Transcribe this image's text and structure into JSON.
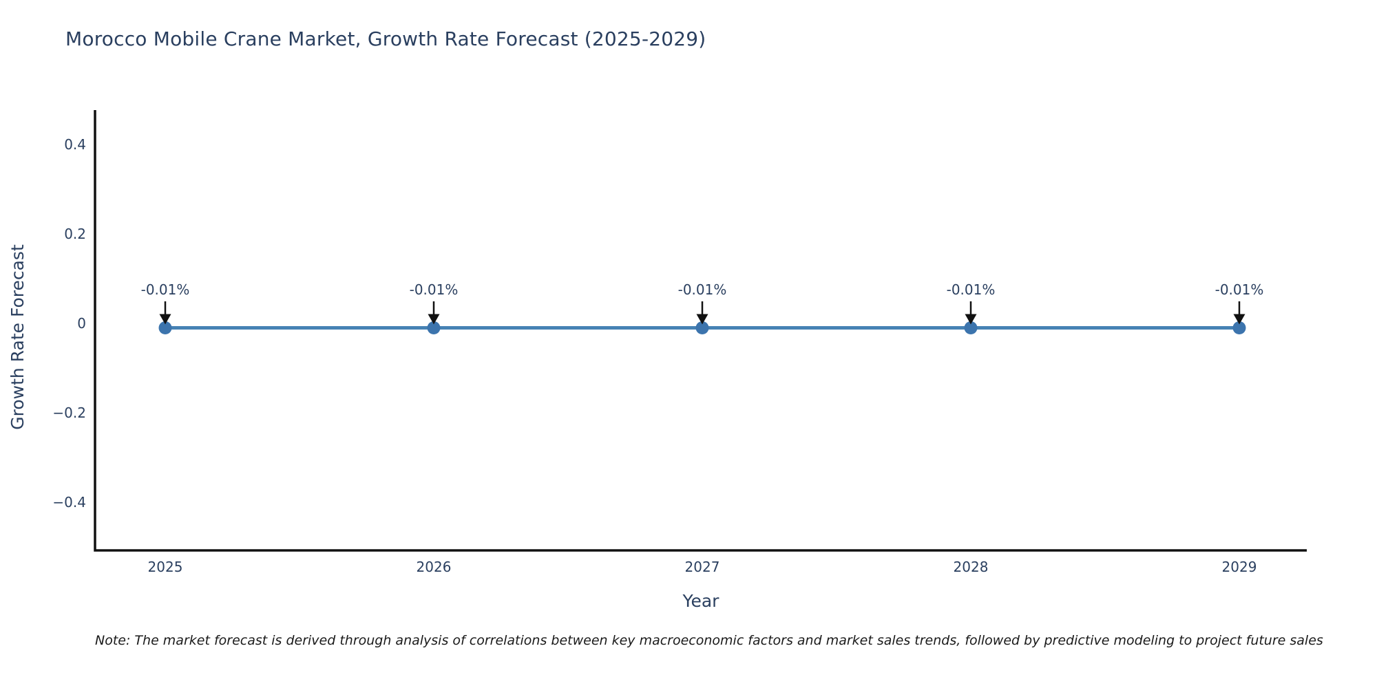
{
  "title": "Morocco Mobile Crane Market, Growth Rate Forecast (2025-2029)",
  "note": "Note: The market forecast is derived through analysis of correlations between key macroeconomic factors and market sales trends, followed by predictive modeling to project future sales",
  "chart_data": {
    "type": "line",
    "title": "Morocco Mobile Crane Market, Growth Rate Forecast (2025-2029)",
    "xlabel": "Year",
    "ylabel": "Growth Rate Forecast",
    "x": [
      2025,
      2026,
      2027,
      2028,
      2029
    ],
    "series": [
      {
        "name": "Growth Rate Forecast",
        "values": [
          -0.01,
          -0.01,
          -0.01,
          -0.01,
          -0.01
        ],
        "point_labels": [
          "-0.01%",
          "-0.01%",
          "-0.01%",
          "-0.01%",
          "-0.01%"
        ]
      }
    ],
    "xtick_labels": [
      "2025",
      "2026",
      "2027",
      "2028",
      "2029"
    ],
    "yticks": [
      0.4,
      0.2,
      0,
      -0.2,
      -0.4
    ],
    "ytick_labels": [
      "0.4",
      "0.2",
      "0",
      "−0.2",
      "−0.4"
    ],
    "ylim": [
      -0.5,
      0.48
    ],
    "grid": false,
    "legend_position": "none",
    "annotation_style": "down-arrow",
    "colors": {
      "line": "#4682b4",
      "marker": "#3c74ad",
      "axis": "#111111",
      "text": "#2a3f5f",
      "arrow": "#111111",
      "background": "#ffffff"
    }
  }
}
